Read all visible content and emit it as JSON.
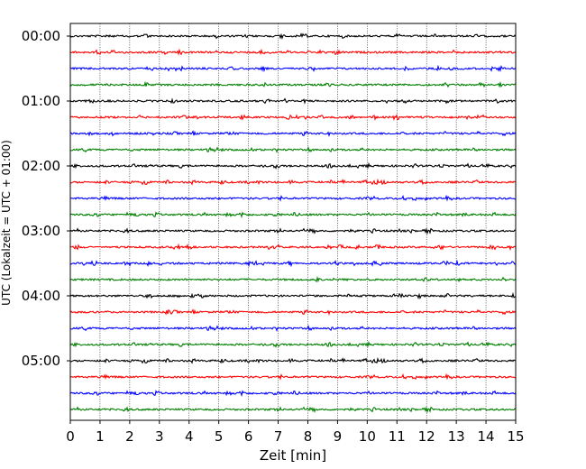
{
  "chart_data": {
    "type": "line",
    "title": "",
    "xlabel": "Zeit  [min]",
    "ylabel": "UTC (Lokalzeit = UTC + 01:00)",
    "xlim": [
      0,
      15
    ],
    "x_ticks": [
      "0",
      "1",
      "2",
      "3",
      "4",
      "5",
      "6",
      "7",
      "8",
      "9",
      "10",
      "11",
      "12",
      "13",
      "14",
      "15"
    ],
    "y_tick_labels": [
      "00:00",
      "01:00",
      "02:00",
      "03:00",
      "04:00",
      "05:00"
    ],
    "trace_start_times_utc": [
      "00:00",
      "00:15",
      "00:30",
      "00:45",
      "01:00",
      "01:15",
      "01:30",
      "01:45",
      "02:00",
      "02:15",
      "02:30",
      "02:45",
      "03:00",
      "03:15",
      "03:30",
      "03:45",
      "04:00",
      "04:15",
      "04:30",
      "04:45",
      "05:00",
      "05:15",
      "05:30",
      "05:45"
    ],
    "trace_minutes_per_line": 15,
    "color_cycle": [
      "#000000",
      "#ff0000",
      "#0000ff",
      "#008000"
    ],
    "vertical_grid": "dotted, every 1 min",
    "horizontal_grid": false,
    "legend": "none"
  }
}
